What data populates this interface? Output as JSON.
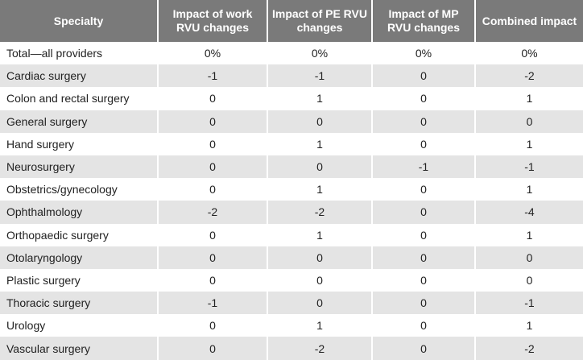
{
  "table": {
    "columns": [
      "Specialty",
      "Impact of work RVU changes",
      "Impact of PE RVU changes",
      "Impact of MP RVU changes",
      "Combined impact"
    ],
    "rows": [
      [
        "Total—all providers",
        "0%",
        "0%",
        "0%",
        "0%"
      ],
      [
        "Cardiac surgery",
        "-1",
        "-1",
        "0",
        "-2"
      ],
      [
        "Colon and rectal surgery",
        "0",
        "1",
        "0",
        "1"
      ],
      [
        "General surgery",
        "0",
        "0",
        "0",
        "0"
      ],
      [
        "Hand surgery",
        "0",
        "1",
        "0",
        "1"
      ],
      [
        "Neurosurgery",
        "0",
        "0",
        "-1",
        "-1"
      ],
      [
        "Obstetrics/gynecology",
        "0",
        "1",
        "0",
        "1"
      ],
      [
        "Ophthalmology",
        "-2",
        "-2",
        "0",
        "-4"
      ],
      [
        "Orthopaedic surgery",
        "0",
        "1",
        "0",
        "1"
      ],
      [
        "Otolaryngology",
        "0",
        "0",
        "0",
        "0"
      ],
      [
        "Plastic surgery",
        "0",
        "0",
        "0",
        "0"
      ],
      [
        "Thoracic surgery",
        "-1",
        "0",
        "0",
        "-1"
      ],
      [
        "Urology",
        "0",
        "1",
        "0",
        "1"
      ],
      [
        "Vascular surgery",
        "0",
        "-2",
        "0",
        "-2"
      ]
    ]
  }
}
